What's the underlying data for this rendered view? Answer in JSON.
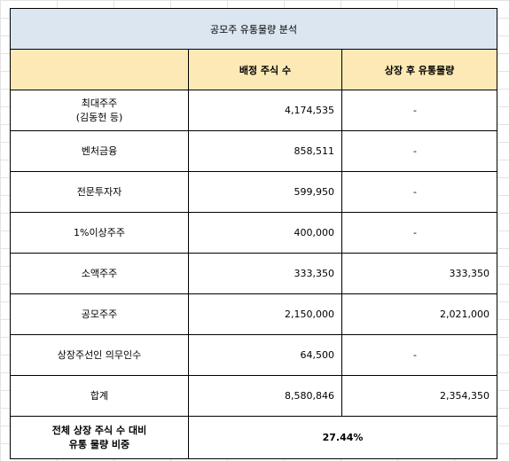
{
  "title": "공모주 유통물량 분석",
  "columns": {
    "allocated": "배정 주식 수",
    "post_listing": "상장 후 유통물량"
  },
  "rows": [
    {
      "label_line1": "최대주주",
      "label_line2": "(김동헌 등)",
      "allocated": "4,174,535",
      "post_listing": "-"
    },
    {
      "label_line1": "벤처금융",
      "label_line2": "",
      "allocated": "858,511",
      "post_listing": "-"
    },
    {
      "label_line1": "전문투자자",
      "label_line2": "",
      "allocated": "599,950",
      "post_listing": "-"
    },
    {
      "label_line1": "1%이상주주",
      "label_line2": "",
      "allocated": "400,000",
      "post_listing": "-"
    },
    {
      "label_line1": "소액주주",
      "label_line2": "",
      "allocated": "333,350",
      "post_listing": "333,350"
    },
    {
      "label_line1": "공모주주",
      "label_line2": "",
      "allocated": "2,150,000",
      "post_listing": "2,021,000"
    },
    {
      "label_line1": "상장주선인 의무인수",
      "label_line2": "",
      "allocated": "64,500",
      "post_listing": "-"
    },
    {
      "label_line1": "합계",
      "label_line2": "",
      "allocated": "8,580,846",
      "post_listing": "2,354,350"
    }
  ],
  "summary": {
    "label_line1": "전체 상장 주식 수 대비",
    "label_line2": "유통 물량 비중",
    "value": "27.44%"
  }
}
